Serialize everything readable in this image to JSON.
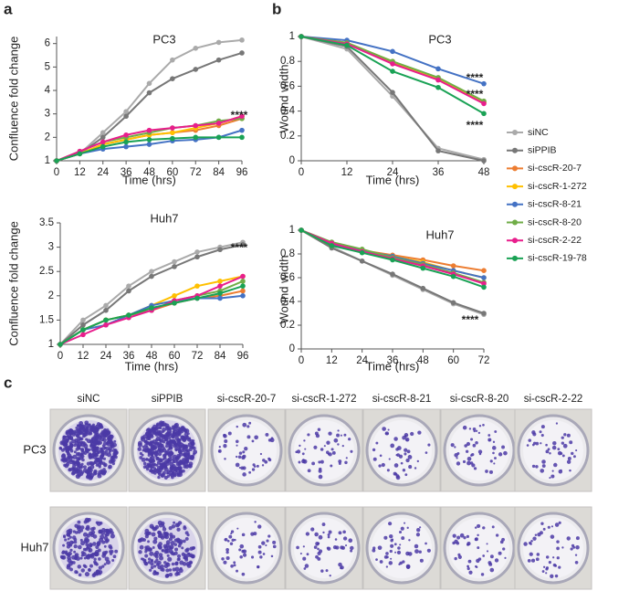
{
  "panel_labels": [
    "a",
    "b",
    "c"
  ],
  "chart_data": [
    {
      "type": "line",
      "title": "PC3",
      "x_label": "Time (hrs)",
      "y_label": "Confluence fold change",
      "x": [
        0,
        12,
        24,
        36,
        48,
        60,
        72,
        84,
        96
      ],
      "xlim": [
        0,
        96
      ],
      "xticks": [
        0,
        12,
        24,
        36,
        48,
        60,
        72,
        84,
        96
      ],
      "ylim": [
        1,
        6.3
      ],
      "yticks": [
        1,
        2,
        3,
        4,
        5,
        6
      ],
      "series": [
        {
          "color": "#aaaaaa",
          "values": [
            1,
            1.3,
            2.2,
            3.1,
            4.3,
            5.3,
            5.8,
            6.05,
            6.15
          ]
        },
        {
          "color": "#777777",
          "values": [
            1,
            1.3,
            2.0,
            2.9,
            3.9,
            4.5,
            4.9,
            5.3,
            5.6
          ]
        },
        {
          "color": "#ed7d31",
          "values": [
            1,
            1.3,
            1.7,
            1.9,
            2.1,
            2.2,
            2.3,
            2.5,
            2.8
          ]
        },
        {
          "color": "#ffc000",
          "values": [
            1,
            1.3,
            1.7,
            1.9,
            2.1,
            2.2,
            2.4,
            2.6,
            2.9
          ]
        },
        {
          "color": "#4472c4",
          "values": [
            1,
            1.3,
            1.5,
            1.6,
            1.7,
            1.85,
            1.9,
            2.0,
            2.3
          ]
        },
        {
          "color": "#70ad47",
          "values": [
            1,
            1.4,
            1.8,
            2.0,
            2.2,
            2.4,
            2.5,
            2.7,
            2.8
          ]
        },
        {
          "color": "#e81e8c",
          "values": [
            1,
            1.4,
            1.8,
            2.1,
            2.3,
            2.4,
            2.5,
            2.6,
            2.9
          ]
        },
        {
          "color": "#1aa255",
          "values": [
            1,
            1.3,
            1.6,
            1.8,
            1.9,
            1.95,
            2.0,
            2.0,
            2.0
          ]
        }
      ],
      "annotations": [
        "****"
      ]
    },
    {
      "type": "line",
      "title": "Huh7",
      "x_label": "Time (hrs)",
      "y_label": "Confluence fold change",
      "x": [
        0,
        12,
        24,
        36,
        48,
        60,
        72,
        84,
        96
      ],
      "xlim": [
        0,
        96
      ],
      "xticks": [
        0,
        12,
        24,
        36,
        48,
        60,
        72,
        84,
        96
      ],
      "ylim": [
        1,
        3.5
      ],
      "yticks": [
        1,
        1.5,
        2,
        2.5,
        3,
        3.5
      ],
      "series": [
        {
          "color": "#aaaaaa",
          "values": [
            1,
            1.5,
            1.8,
            2.2,
            2.5,
            2.7,
            2.9,
            3.0,
            3.1
          ]
        },
        {
          "color": "#777777",
          "values": [
            1,
            1.4,
            1.7,
            2.1,
            2.4,
            2.6,
            2.8,
            2.95,
            3.05
          ]
        },
        {
          "color": "#ed7d31",
          "values": [
            1,
            1.3,
            1.5,
            1.6,
            1.7,
            1.85,
            1.95,
            2.0,
            2.1
          ]
        },
        {
          "color": "#ffc000",
          "values": [
            1,
            1.3,
            1.5,
            1.6,
            1.8,
            2.0,
            2.2,
            2.3,
            2.4
          ]
        },
        {
          "color": "#4472c4",
          "values": [
            1,
            1.3,
            1.4,
            1.6,
            1.8,
            1.9,
            1.95,
            1.95,
            2.0
          ]
        },
        {
          "color": "#70ad47",
          "values": [
            1,
            1.3,
            1.5,
            1.6,
            1.7,
            1.9,
            2.0,
            2.1,
            2.3
          ]
        },
        {
          "color": "#e81e8c",
          "values": [
            1,
            1.2,
            1.4,
            1.55,
            1.7,
            1.9,
            2.0,
            2.2,
            2.4
          ]
        },
        {
          "color": "#1aa255",
          "values": [
            1,
            1.3,
            1.5,
            1.6,
            1.75,
            1.85,
            1.95,
            2.05,
            2.2
          ]
        }
      ],
      "annotations": [
        "****"
      ]
    },
    {
      "type": "line",
      "title": "PC3",
      "x_label": "Time (hrs)",
      "y_label": "Wound width",
      "x": [
        0,
        12,
        24,
        36,
        48
      ],
      "xlim": [
        0,
        48
      ],
      "xticks": [
        0,
        12,
        24,
        36,
        48
      ],
      "ylim": [
        0,
        1
      ],
      "yticks": [
        0,
        0.2,
        0.4,
        0.6,
        0.8,
        1
      ],
      "legend": "right",
      "series": [
        {
          "name": "siNC",
          "color": "#aaaaaa",
          "values": [
            1,
            0.9,
            0.52,
            0.1,
            0.01
          ]
        },
        {
          "name": "siPPIB",
          "color": "#777777",
          "values": [
            1,
            0.92,
            0.55,
            0.08,
            0.0
          ]
        },
        {
          "name": "si-cscR-20-7",
          "color": "#ed7d31",
          "values": [
            1,
            0.95,
            0.79,
            0.66,
            0.47
          ]
        },
        {
          "name": "si-cscR-1-272",
          "color": "#ffc000",
          "values": [
            1,
            0.95,
            0.8,
            0.66,
            0.47
          ]
        },
        {
          "name": "si-cscR-8-21",
          "color": "#4472c4",
          "values": [
            1,
            0.97,
            0.88,
            0.74,
            0.62
          ]
        },
        {
          "name": "si-cscR-8-20",
          "color": "#70ad47",
          "values": [
            1,
            0.95,
            0.8,
            0.67,
            0.48
          ]
        },
        {
          "name": "si-cscR-2-22",
          "color": "#e81e8c",
          "values": [
            1,
            0.94,
            0.78,
            0.65,
            0.46
          ]
        },
        {
          "name": "si-cscR-19-78",
          "color": "#1aa255",
          "values": [
            1,
            0.93,
            0.72,
            0.59,
            0.38
          ]
        }
      ],
      "annotations": [
        "****",
        "****",
        "****"
      ]
    },
    {
      "type": "line",
      "title": "Huh7",
      "x_label": "Time (hrs)",
      "y_label": "Wound width",
      "x": [
        0,
        12,
        24,
        36,
        48,
        60,
        72
      ],
      "xlim": [
        0,
        72
      ],
      "xticks": [
        0,
        12,
        24,
        36,
        48,
        60,
        72
      ],
      "ylim": [
        0,
        1
      ],
      "yticks": [
        0,
        0.2,
        0.4,
        0.6,
        0.8,
        1
      ],
      "series": [
        {
          "color": "#aaaaaa",
          "values": [
            1,
            0.86,
            0.74,
            0.62,
            0.5,
            0.38,
            0.29
          ]
        },
        {
          "color": "#777777",
          "values": [
            1,
            0.85,
            0.74,
            0.63,
            0.51,
            0.39,
            0.3
          ]
        },
        {
          "color": "#ed7d31",
          "values": [
            1,
            0.87,
            0.83,
            0.79,
            0.75,
            0.7,
            0.66
          ]
        },
        {
          "color": "#ffc000",
          "values": [
            1,
            0.88,
            0.83,
            0.78,
            0.73,
            0.66,
            0.6
          ]
        },
        {
          "color": "#4472c4",
          "values": [
            1,
            0.88,
            0.83,
            0.78,
            0.72,
            0.66,
            0.6
          ]
        },
        {
          "color": "#70ad47",
          "values": [
            1,
            0.9,
            0.84,
            0.77,
            0.71,
            0.64,
            0.56
          ]
        },
        {
          "color": "#e81e8c",
          "values": [
            1,
            0.89,
            0.82,
            0.76,
            0.7,
            0.63,
            0.55
          ]
        },
        {
          "color": "#1aa255",
          "values": [
            1,
            0.87,
            0.81,
            0.75,
            0.68,
            0.61,
            0.52
          ]
        }
      ],
      "annotations": [
        "****"
      ]
    }
  ],
  "panel_c": {
    "columns": [
      "siNC",
      "siPPIB",
      "si-cscR-20-7",
      "si-cscR-1-272",
      "si-cscR-8-21",
      "si-cscR-8-20",
      "si-cscR-2-22"
    ],
    "rows": [
      "PC3",
      "Huh7"
    ]
  }
}
